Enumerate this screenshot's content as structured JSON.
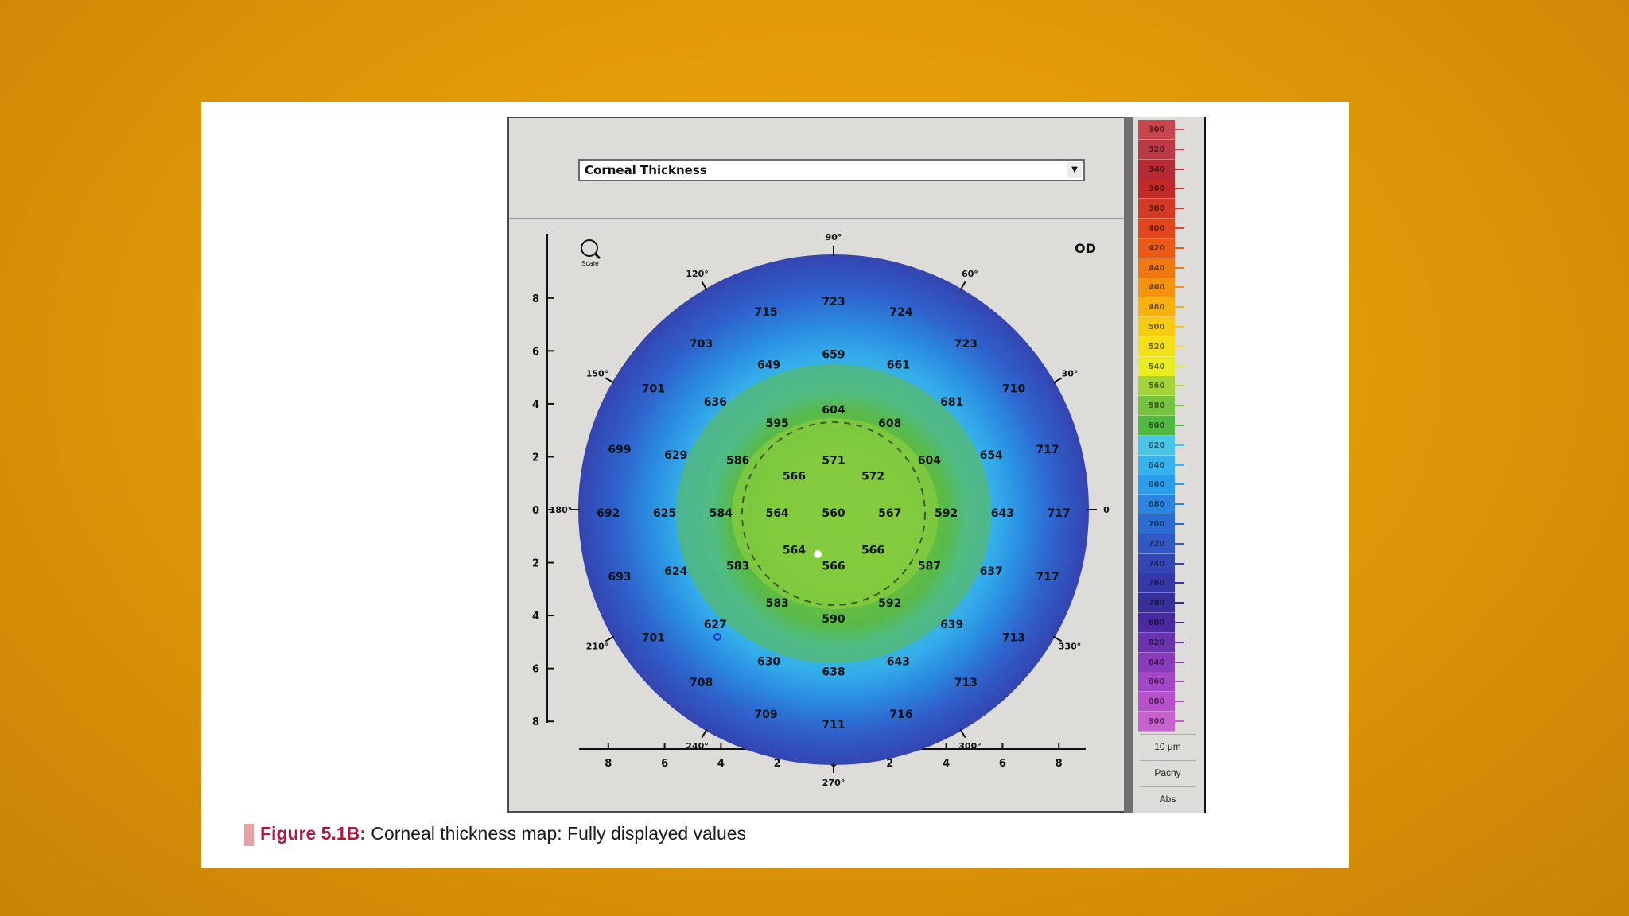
{
  "map_type": "Corneal Thickness",
  "eye": "OD",
  "zoom_icon_label": "Scale",
  "axis_ticks": [
    "8",
    "6",
    "4",
    "2",
    "0",
    "2",
    "4",
    "6",
    "8"
  ],
  "angle_labels": {
    "a90": "90°",
    "a60": "60°",
    "a30": "30°",
    "a0": "0",
    "a120": "120°",
    "a150": "150°",
    "a180": "180°",
    "a210": "210°",
    "a240": "240°",
    "a270": "270°",
    "a300": "300°",
    "a330": "330°"
  },
  "thickness_values": [
    {
      "v": "715",
      "x": -2.4,
      "y": 7.6
    },
    {
      "v": "723",
      "x": 0,
      "y": 8.0
    },
    {
      "v": "724",
      "x": 2.4,
      "y": 7.6
    },
    {
      "v": "703",
      "x": -4.7,
      "y": 6.4
    },
    {
      "v": "723",
      "x": 4.7,
      "y": 6.4
    },
    {
      "v": "649",
      "x": -2.3,
      "y": 5.6
    },
    {
      "v": "659",
      "x": 0,
      "y": 6.0
    },
    {
      "v": "661",
      "x": 2.3,
      "y": 5.6
    },
    {
      "v": "701",
      "x": -6.4,
      "y": 4.7
    },
    {
      "v": "636",
      "x": -4.2,
      "y": 4.2
    },
    {
      "v": "681",
      "x": 4.2,
      "y": 4.2
    },
    {
      "v": "710",
      "x": 6.4,
      "y": 4.7
    },
    {
      "v": "595",
      "x": -2.0,
      "y": 3.4
    },
    {
      "v": "604",
      "x": 0,
      "y": 3.9
    },
    {
      "v": "608",
      "x": 2.0,
      "y": 3.4
    },
    {
      "v": "699",
      "x": -7.6,
      "y": 2.4
    },
    {
      "v": "629",
      "x": -5.6,
      "y": 2.2
    },
    {
      "v": "586",
      "x": -3.4,
      "y": 2.0
    },
    {
      "v": "571",
      "x": 0,
      "y": 2.0
    },
    {
      "v": "604",
      "x": 3.4,
      "y": 2.0
    },
    {
      "v": "654",
      "x": 5.6,
      "y": 2.2
    },
    {
      "v": "717",
      "x": 7.6,
      "y": 2.4
    },
    {
      "v": "566",
      "x": -1.4,
      "y": 1.4
    },
    {
      "v": "572",
      "x": 1.4,
      "y": 1.4
    },
    {
      "v": "692",
      "x": -8.0,
      "y": 0
    },
    {
      "v": "625",
      "x": -6.0,
      "y": 0
    },
    {
      "v": "584",
      "x": -4.0,
      "y": 0
    },
    {
      "v": "564",
      "x": -2.0,
      "y": 0
    },
    {
      "v": "560",
      "x": 0,
      "y": 0
    },
    {
      "v": "567",
      "x": 2.0,
      "y": 0
    },
    {
      "v": "592",
      "x": 4.0,
      "y": 0
    },
    {
      "v": "643",
      "x": 6.0,
      "y": 0
    },
    {
      "v": "717",
      "x": 8.0,
      "y": 0
    },
    {
      "v": "564",
      "x": -1.4,
      "y": -1.4
    },
    {
      "v": "566",
      "x": 1.4,
      "y": -1.4
    },
    {
      "v": "693",
      "x": -7.6,
      "y": -2.4
    },
    {
      "v": "624",
      "x": -5.6,
      "y": -2.2
    },
    {
      "v": "583",
      "x": -3.4,
      "y": -2.0
    },
    {
      "v": "566",
      "x": 0,
      "y": -2.0
    },
    {
      "v": "587",
      "x": 3.4,
      "y": -2.0
    },
    {
      "v": "637",
      "x": 5.6,
      "y": -2.2
    },
    {
      "v": "717",
      "x": 7.6,
      "y": -2.4
    },
    {
      "v": "583",
      "x": -2.0,
      "y": -3.4
    },
    {
      "v": "590",
      "x": 0,
      "y": -4.0
    },
    {
      "v": "592",
      "x": 2.0,
      "y": -3.4
    },
    {
      "v": "701",
      "x": -6.4,
      "y": -4.7
    },
    {
      "v": "627",
      "x": -4.2,
      "y": -4.2
    },
    {
      "v": "639",
      "x": 4.2,
      "y": -4.2
    },
    {
      "v": "713",
      "x": 6.4,
      "y": -4.7
    },
    {
      "v": "630",
      "x": -2.3,
      "y": -5.6
    },
    {
      "v": "638",
      "x": 0,
      "y": -6.0
    },
    {
      "v": "643",
      "x": 2.3,
      "y": -5.6
    },
    {
      "v": "708",
      "x": -4.7,
      "y": -6.4
    },
    {
      "v": "713",
      "x": 4.7,
      "y": -6.4
    },
    {
      "v": "709",
      "x": -2.4,
      "y": -7.6
    },
    {
      "v": "711",
      "x": 0,
      "y": -8.0
    },
    {
      "v": "716",
      "x": 2.4,
      "y": -7.6
    }
  ],
  "color_scale": [
    {
      "label": "300",
      "color": "#c8464e"
    },
    {
      "label": "320",
      "color": "#bc3a45"
    },
    {
      "label": "340",
      "color": "#b52a34"
    },
    {
      "label": "360",
      "color": "#c22a2a"
    },
    {
      "label": "380",
      "color": "#d43a24"
    },
    {
      "label": "400",
      "color": "#e2461c"
    },
    {
      "label": "420",
      "color": "#ea5a14"
    },
    {
      "label": "440",
      "color": "#f07810"
    },
    {
      "label": "460",
      "color": "#f4940e"
    },
    {
      "label": "480",
      "color": "#f7b10f"
    },
    {
      "label": "500",
      "color": "#f6cc12"
    },
    {
      "label": "520",
      "color": "#f4e01a"
    },
    {
      "label": "540",
      "color": "#e8ec22"
    },
    {
      "label": "560",
      "color": "#a4d43a"
    },
    {
      "label": "580",
      "color": "#76c43e"
    },
    {
      "label": "600",
      "color": "#52b844"
    },
    {
      "label": "620",
      "color": "#49c6e6"
    },
    {
      "label": "640",
      "color": "#36b2ee"
    },
    {
      "label": "660",
      "color": "#2a9cec"
    },
    {
      "label": "680",
      "color": "#2a84e0"
    },
    {
      "label": "700",
      "color": "#2c6cd2"
    },
    {
      "label": "720",
      "color": "#3258c4"
    },
    {
      "label": "740",
      "color": "#3446b6"
    },
    {
      "label": "760",
      "color": "#3638a8"
    },
    {
      "label": "780",
      "color": "#38309a"
    },
    {
      "label": "800",
      "color": "#4a2aa0"
    },
    {
      "label": "820",
      "color": "#6a32ae"
    },
    {
      "label": "840",
      "color": "#8a3cbc"
    },
    {
      "label": "860",
      "color": "#a446c8"
    },
    {
      "label": "880",
      "color": "#b852cc"
    },
    {
      "label": "900",
      "color": "#c860d0"
    }
  ],
  "scale_buttons": {
    "step": "10 μm",
    "mode": "Pachy",
    "abs": "Abs"
  },
  "caption": {
    "label": "Figure 5.1B:",
    "text": " Corneal thickness map: Fully displayed values"
  }
}
